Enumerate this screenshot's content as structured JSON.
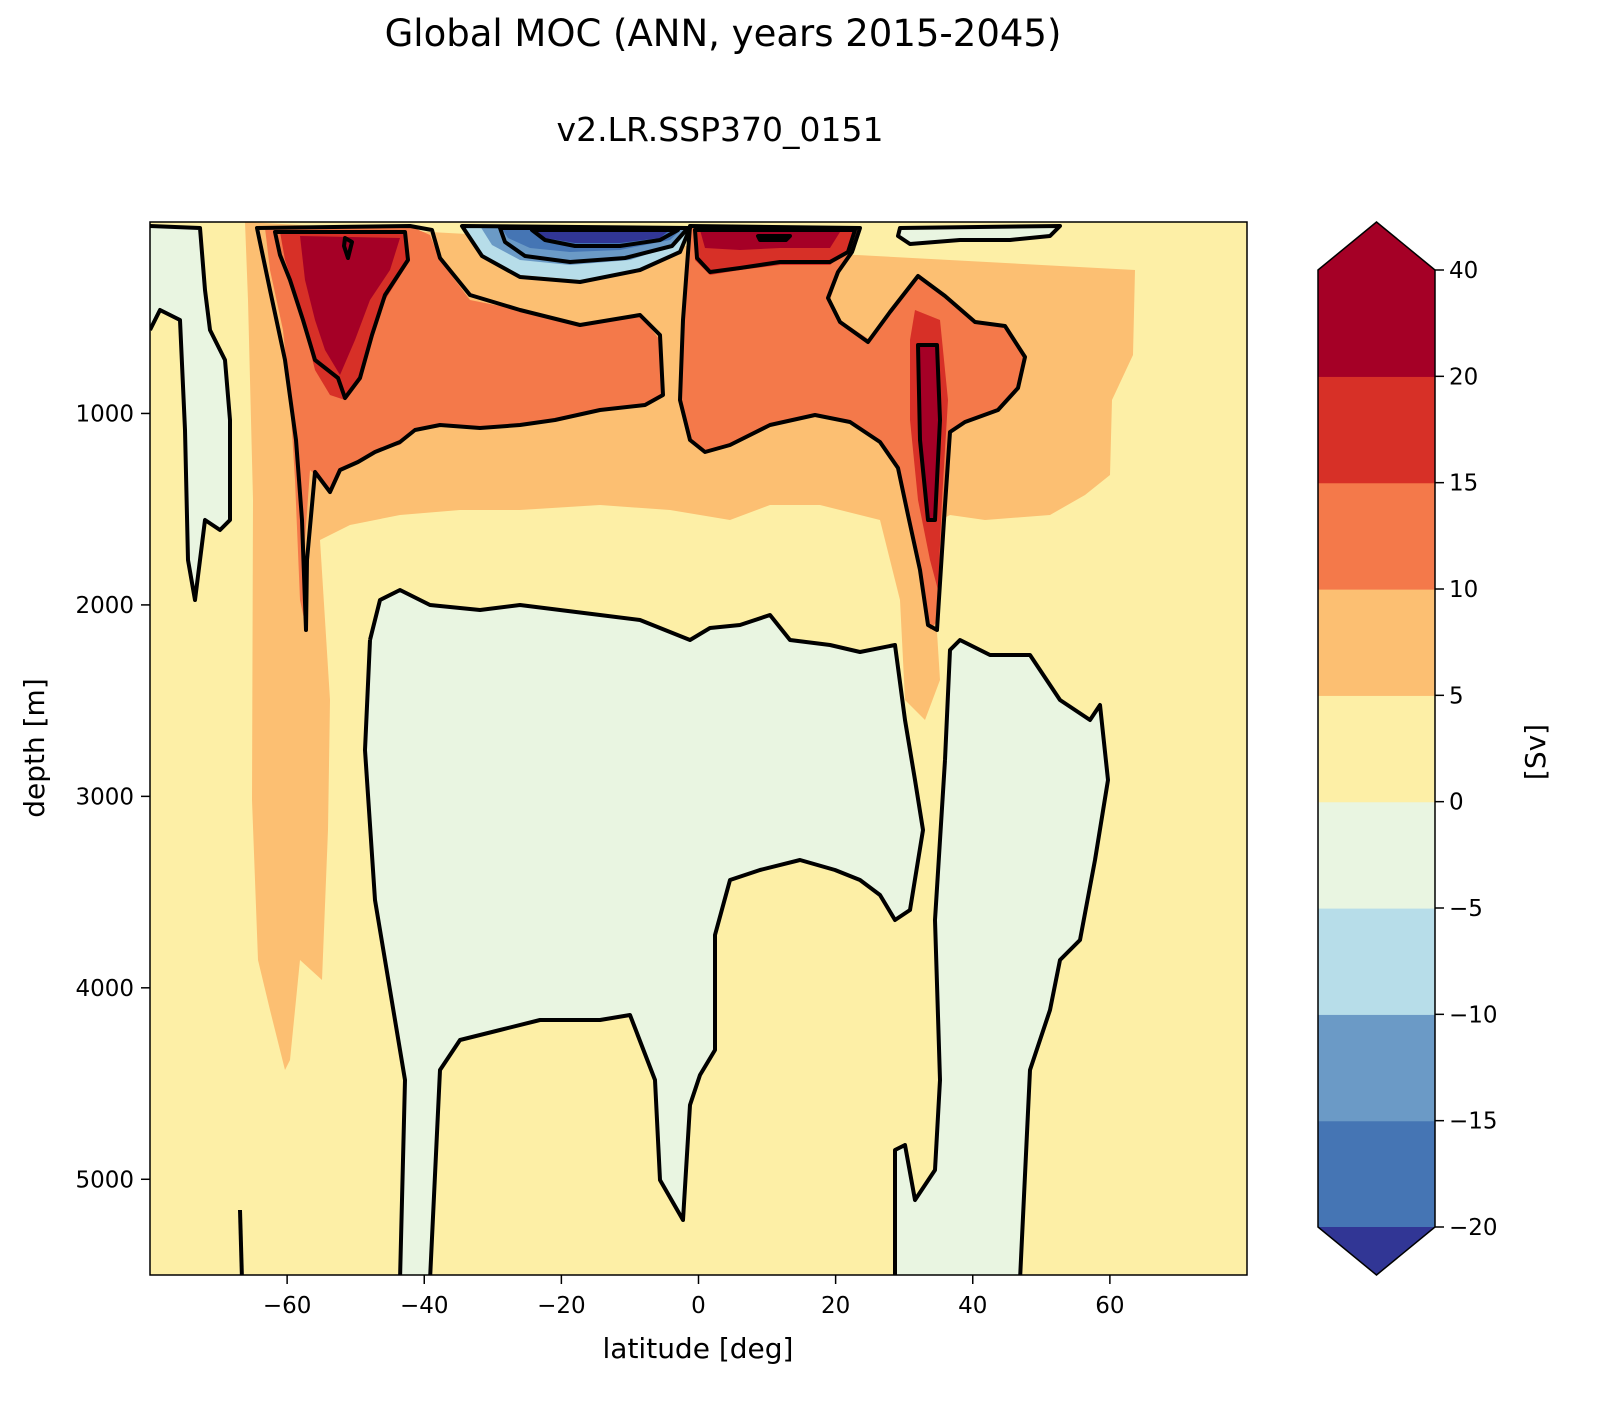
{
  "chart_data": {
    "type": "heatmap",
    "title": "Global MOC (ANN, years 2015-2045)",
    "subtitle": "v2.LR.SSP370_0151",
    "xlabel": "latitude [deg]",
    "ylabel": "depth [m]",
    "xlim": [
      -80,
      80
    ],
    "ylim": [
      5500,
      0
    ],
    "xticks": [
      -60,
      -40,
      -20,
      0,
      20,
      40,
      60
    ],
    "yticks": [
      1000,
      2000,
      3000,
      4000,
      5000
    ],
    "colorbar": {
      "label": "[Sv]",
      "levels": [
        -20,
        -15,
        -10,
        -5,
        0,
        5,
        10,
        15,
        20,
        40
      ],
      "tick_labels": [
        "−20",
        "−15",
        "−10",
        "−5",
        "0",
        "5",
        "10",
        "15",
        "20",
        "40"
      ],
      "colors": [
        "#313695",
        "#4575b4",
        "#6b9ac6",
        "#b7dde9",
        "#e9f5e1",
        "#fdefa6",
        "#fcbf72",
        "#f4794a",
        "#d73027",
        "#a50026"
      ],
      "extend": "both"
    },
    "regions": [
      {
        "name": "background",
        "value": 2
      },
      {
        "name": "southern-ocean-deep-cell",
        "value": 7
      },
      {
        "name": "southern-surface-cell",
        "value": 12
      },
      {
        "name": "southern-surface-core",
        "value": 22
      },
      {
        "name": "tropical-surface-negative-cell",
        "value": -18
      },
      {
        "name": "northern-surface-cell",
        "value": 12
      },
      {
        "name": "northern-surface-core",
        "value": 22
      },
      {
        "name": "north-atlantic-deep-core",
        "value": 24
      },
      {
        "name": "abyssal-negative-cell-south",
        "value": -2
      },
      {
        "name": "abyssal-negative-cell-north",
        "value": -2
      },
      {
        "name": "antarctic-negative-cell",
        "value": -2
      }
    ]
  }
}
